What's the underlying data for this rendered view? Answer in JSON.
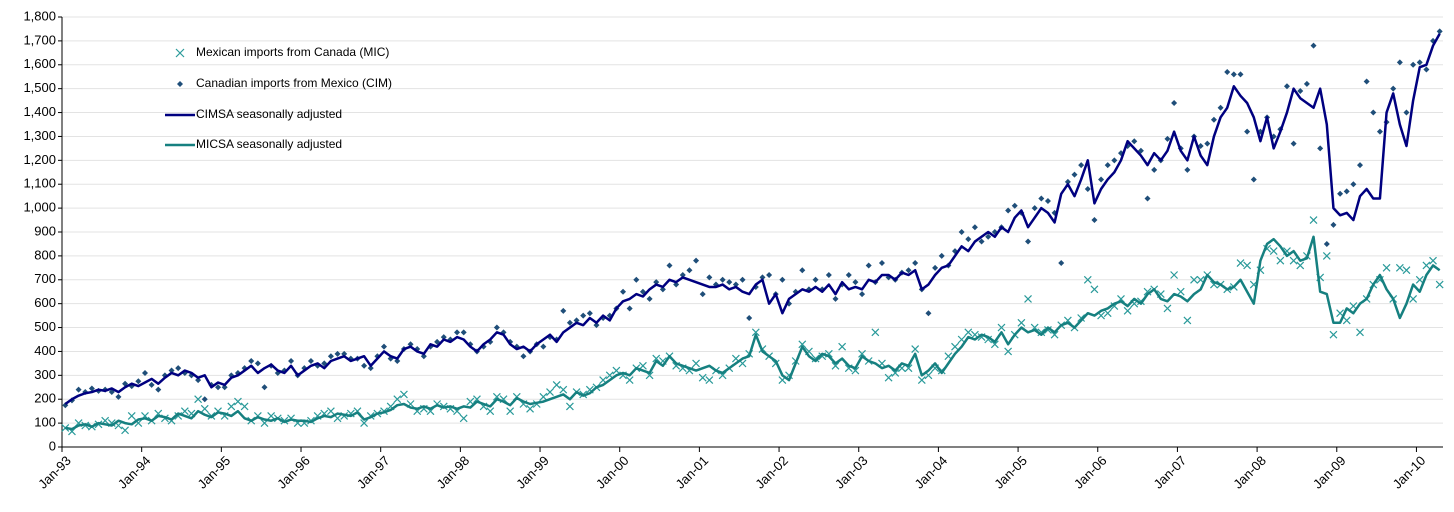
{
  "chart_data": {
    "type": "line",
    "categories": [
      "Jan-93",
      null,
      null,
      null,
      null,
      null,
      null,
      null,
      null,
      null,
      null,
      null,
      "Jan-94",
      null,
      null,
      null,
      null,
      null,
      null,
      null,
      null,
      null,
      null,
      null,
      "Jan-95",
      null,
      null,
      null,
      null,
      null,
      null,
      null,
      null,
      null,
      null,
      null,
      "Jan-96",
      null,
      null,
      null,
      null,
      null,
      null,
      null,
      null,
      null,
      null,
      null,
      "Jan-97",
      null,
      null,
      null,
      null,
      null,
      null,
      null,
      null,
      null,
      null,
      null,
      "Jan-98",
      null,
      null,
      null,
      null,
      null,
      null,
      null,
      null,
      null,
      null,
      null,
      "Jan-99",
      null,
      null,
      null,
      null,
      null,
      null,
      null,
      null,
      null,
      null,
      null,
      "Jan-00",
      null,
      null,
      null,
      null,
      null,
      null,
      null,
      null,
      null,
      null,
      null,
      "Jan-01",
      null,
      null,
      null,
      null,
      null,
      null,
      null,
      null,
      null,
      null,
      null,
      "Jan-02",
      null,
      null,
      null,
      null,
      null,
      null,
      null,
      null,
      null,
      null,
      null,
      "Jan-03",
      null,
      null,
      null,
      null,
      null,
      null,
      null,
      null,
      null,
      null,
      null,
      "Jan-04",
      null,
      null,
      null,
      null,
      null,
      null,
      null,
      null,
      null,
      null,
      null,
      "Jan-05",
      null,
      null,
      null,
      null,
      null,
      null,
      null,
      null,
      null,
      null,
      null,
      "Jan-06",
      null,
      null,
      null,
      null,
      null,
      null,
      null,
      null,
      null,
      null,
      null,
      "Jan-07",
      null,
      null,
      null,
      null,
      null,
      null,
      null,
      null,
      null,
      null,
      null,
      "Jan-08",
      null,
      null,
      null,
      null,
      null,
      null,
      null,
      null,
      null,
      null,
      null,
      "Jan-09",
      null,
      null,
      null,
      null,
      null,
      null,
      null,
      null,
      null,
      null,
      null,
      "Jan-10",
      null,
      null,
      null
    ],
    "ylim": [
      0,
      1800
    ],
    "yticks": [
      0,
      100,
      200,
      300,
      400,
      500,
      600,
      700,
      800,
      900,
      {
        "value": 1000,
        "label": "1,000"
      },
      {
        "value": 1100,
        "label": "1,100"
      },
      {
        "value": 1200,
        "label": "1,200"
      },
      {
        "value": 1300,
        "label": "1,300"
      },
      {
        "value": 1400,
        "label": "1,400"
      },
      {
        "value": 1500,
        "label": "1,500"
      },
      {
        "value": 1600,
        "label": "1,600"
      },
      {
        "value": 1700,
        "label": "1,700"
      },
      {
        "value": 1800,
        "label": "1,800"
      }
    ],
    "grid": true,
    "legend": "upper-left",
    "series": [
      {
        "name": "Mexican imports from Canada (MIC)",
        "mark": "cross",
        "color": "#2a9a9a",
        "values": [
          80,
          65,
          100,
          90,
          85,
          95,
          110,
          100,
          90,
          70,
          130,
          100,
          130,
          110,
          140,
          120,
          110,
          130,
          150,
          140,
          200,
          160,
          130,
          150,
          130,
          170,
          190,
          170,
          110,
          130,
          100,
          130,
          120,
          110,
          120,
          100,
          100,
          110,
          130,
          140,
          150,
          120,
          130,
          140,
          150,
          100,
          130,
          140,
          150,
          170,
          200,
          220,
          180,
          150,
          160,
          150,
          180,
          170,
          160,
          150,
          120,
          190,
          200,
          170,
          150,
          210,
          200,
          150,
          210,
          180,
          160,
          180,
          210,
          230,
          260,
          240,
          170,
          230,
          220,
          240,
          250,
          280,
          300,
          320,
          300,
          280,
          330,
          340,
          300,
          370,
          360,
          380,
          340,
          330,
          320,
          350,
          290,
          280,
          320,
          300,
          330,
          370,
          350,
          390,
          480,
          410,
          380,
          350,
          280,
          300,
          360,
          430,
          400,
          370,
          380,
          390,
          340,
          420,
          330,
          320,
          390,
          360,
          480,
          350,
          290,
          310,
          330,
          330,
          410,
          280,
          300,
          330,
          320,
          380,
          420,
          450,
          480,
          470,
          460,
          450,
          430,
          500,
          400,
          470,
          520,
          620,
          500,
          480,
          490,
          470,
          510,
          530,
          500,
          540,
          700,
          660,
          550,
          560,
          590,
          620,
          570,
          600,
          610,
          650,
          660,
          640,
          580,
          720,
          650,
          530,
          700,
          700,
          720,
          680,
          680,
          660,
          670,
          770,
          760,
          680,
          740,
          830,
          820,
          780,
          820,
          780,
          760,
          800,
          950,
          710,
          800,
          470,
          560,
          530,
          590,
          480,
          620,
          680,
          700,
          750,
          620,
          750,
          740,
          620,
          700,
          760,
          780,
          680
        ]
      },
      {
        "name": "Canadian imports from Mexico (CIM)",
        "mark": "diamond",
        "color": "#1f4e79",
        "values": [
          175,
          195,
          240,
          230,
          245,
          235,
          240,
          230,
          210,
          265,
          255,
          275,
          310,
          260,
          240,
          300,
          320,
          330,
          310,
          300,
          280,
          200,
          260,
          250,
          250,
          300,
          310,
          330,
          360,
          350,
          250,
          340,
          310,
          320,
          360,
          300,
          330,
          360,
          340,
          350,
          380,
          390,
          390,
          370,
          370,
          340,
          330,
          380,
          420,
          370,
          360,
          410,
          430,
          410,
          380,
          420,
          440,
          460,
          450,
          480,
          480,
          430,
          400,
          420,
          440,
          500,
          480,
          440,
          420,
          380,
          400,
          430,
          420,
          460,
          450,
          570,
          520,
          530,
          550,
          560,
          510,
          540,
          550,
          580,
          650,
          580,
          700,
          650,
          620,
          690,
          660,
          760,
          680,
          720,
          740,
          780,
          640,
          710,
          680,
          700,
          690,
          680,
          700,
          540,
          670,
          710,
          720,
          640,
          700,
          600,
          650,
          740,
          660,
          700,
          660,
          720,
          620,
          680,
          720,
          690,
          640,
          760,
          690,
          770,
          710,
          700,
          730,
          740,
          770,
          660,
          560,
          750,
          800,
          760,
          820,
          900,
          870,
          920,
          860,
          880,
          900,
          920,
          990,
          1010,
          980,
          860,
          1000,
          1040,
          1030,
          980,
          770,
          1110,
          1140,
          1180,
          1080,
          950,
          1120,
          1180,
          1200,
          1230,
          1260,
          1280,
          1240,
          1040,
          1160,
          1200,
          1290,
          1440,
          1250,
          1160,
          1300,
          1260,
          1270,
          1370,
          1420,
          1570,
          1560,
          1560,
          1320,
          1120,
          1320,
          1380,
          1300,
          1330,
          1510,
          1270,
          1490,
          1520,
          1680,
          1250,
          850,
          930,
          1060,
          1070,
          1100,
          1180,
          1530,
          1400,
          1320,
          1360,
          1500,
          1610,
          1400,
          1600,
          1610,
          1580,
          1700,
          1740
        ]
      },
      {
        "name": "CIMSA seasonally adjusted",
        "mark": "line",
        "color": "#000080",
        "values": [
          180,
          200,
          215,
          225,
          230,
          240,
          235,
          245,
          230,
          250,
          265,
          255,
          270,
          285,
          265,
          290,
          310,
          300,
          320,
          310,
          290,
          300,
          250,
          270,
          260,
          290,
          300,
          320,
          340,
          310,
          330,
          345,
          320,
          310,
          340,
          300,
          320,
          340,
          350,
          330,
          360,
          370,
          380,
          360,
          370,
          380,
          340,
          370,
          400,
          380,
          370,
          410,
          420,
          400,
          390,
          430,
          420,
          450,
          440,
          460,
          450,
          420,
          400,
          430,
          450,
          480,
          470,
          430,
          410,
          420,
          400,
          430,
          450,
          470,
          440,
          480,
          500,
          520,
          510,
          540,
          520,
          550,
          530,
          580,
          610,
          620,
          640,
          630,
          660,
          680,
          670,
          700,
          690,
          710,
          700,
          690,
          680,
          670,
          670,
          680,
          660,
          670,
          650,
          640,
          680,
          700,
          600,
          640,
          560,
          620,
          640,
          660,
          650,
          670,
          650,
          680,
          640,
          690,
          660,
          670,
          660,
          700,
          690,
          720,
          720,
          700,
          730,
          720,
          740,
          660,
          680,
          720,
          750,
          760,
          800,
          840,
          820,
          860,
          880,
          900,
          880,
          920,
          900,
          960,
          990,
          920,
          960,
          1000,
          980,
          940,
          1060,
          1100,
          1050,
          1120,
          1200,
          1020,
          1080,
          1120,
          1150,
          1200,
          1280,
          1250,
          1220,
          1180,
          1230,
          1200,
          1240,
          1320,
          1240,
          1200,
          1300,
          1220,
          1180,
          1300,
          1380,
          1420,
          1510,
          1470,
          1440,
          1380,
          1280,
          1380,
          1250,
          1320,
          1400,
          1500,
          1460,
          1440,
          1420,
          1500,
          1350,
          1000,
          970,
          980,
          950,
          1050,
          1080,
          1040,
          1040,
          1400,
          1480,
          1350,
          1260,
          1450,
          1590,
          1600,
          1680,
          1730
        ]
      },
      {
        "name": "MICSA seasonally adjusted",
        "mark": "line",
        "color": "#168080",
        "values": [
          80,
          75,
          90,
          95,
          85,
          100,
          95,
          90,
          110,
          100,
          95,
          115,
          120,
          110,
          130,
          125,
          115,
          140,
          130,
          120,
          150,
          135,
          125,
          145,
          140,
          130,
          150,
          120,
          110,
          125,
          115,
          110,
          120,
          105,
          115,
          110,
          110,
          105,
          120,
          130,
          125,
          140,
          135,
          130,
          145,
          115,
          125,
          140,
          145,
          155,
          175,
          180,
          165,
          160,
          170,
          160,
          175,
          165,
          170,
          160,
          170,
          165,
          190,
          180,
          170,
          200,
          190,
          175,
          205,
          190,
          180,
          185,
          190,
          200,
          210,
          220,
          200,
          230,
          215,
          225,
          250,
          260,
          280,
          300,
          310,
          300,
          330,
          320,
          310,
          360,
          340,
          380,
          350,
          340,
          330,
          320,
          330,
          340,
          320,
          310,
          330,
          350,
          370,
          380,
          470,
          400,
          380,
          360,
          300,
          280,
          350,
          420,
          380,
          360,
          390,
          380,
          350,
          370,
          340,
          330,
          380,
          360,
          350,
          330,
          340,
          320,
          350,
          340,
          390,
          300,
          320,
          350,
          310,
          350,
          390,
          420,
          460,
          450,
          470,
          460,
          440,
          480,
          430,
          470,
          500,
          480,
          490,
          470,
          500,
          480,
          510,
          520,
          500,
          530,
          560,
          550,
          570,
          580,
          600,
          610,
          590,
          620,
          600,
          640,
          660,
          620,
          610,
          640,
          630,
          610,
          640,
          660,
          720,
          690,
          680,
          660,
          670,
          700,
          650,
          600,
          780,
          850,
          870,
          840,
          800,
          820,
          780,
          790,
          880,
          650,
          640,
          520,
          520,
          580,
          560,
          600,
          620,
          680,
          720,
          660,
          620,
          540,
          600,
          680,
          650,
          720,
          760,
          740
        ]
      }
    ]
  }
}
